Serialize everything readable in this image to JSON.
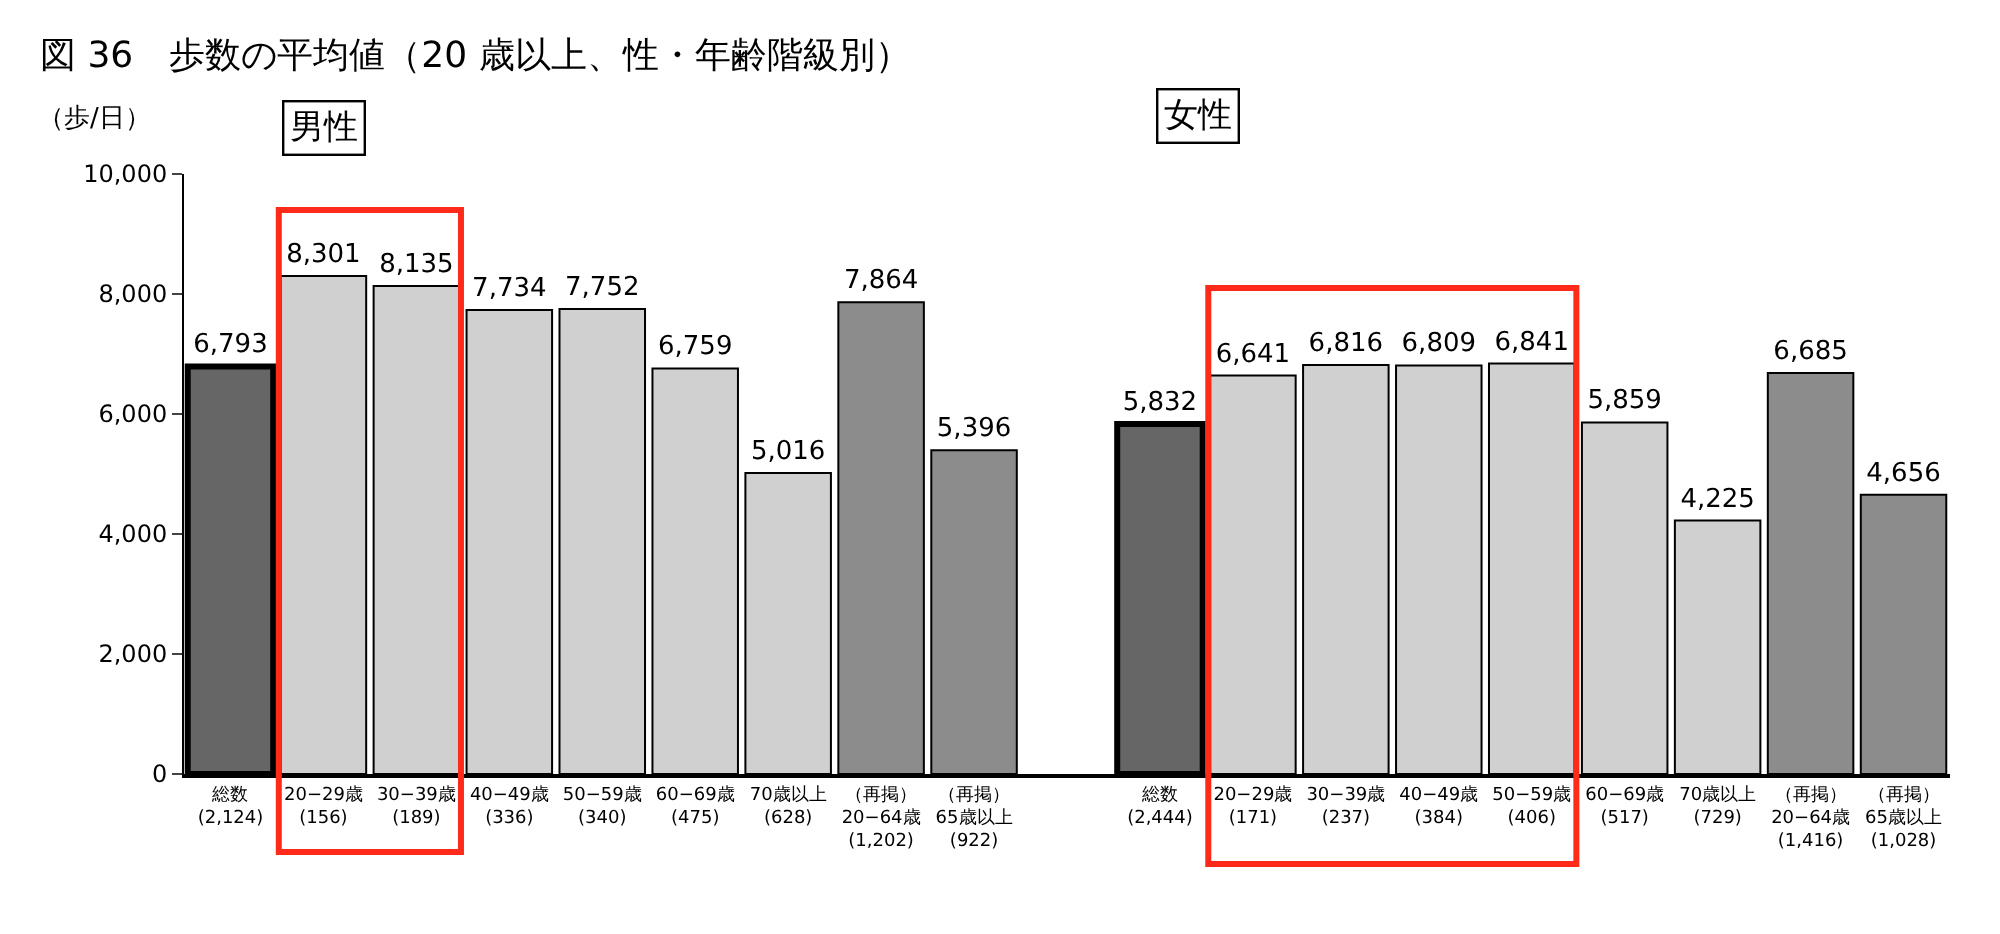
{
  "chart_data": {
    "type": "bar",
    "title": "図 36　歩数の平均値（20 歳以上、性・年齢階級別）",
    "ylabel": "（歩/日）",
    "categories": [
      "総数\n(2,124)",
      "20−29歳\n(156)",
      "30−39歳\n(189)",
      "40−49歳\n(336)",
      "50−59歳\n(340)",
      "60−69歳\n(475)",
      "70歳以上\n(628)",
      "（再掲）\n20−64歳\n(1,202)",
      "（再掲）\n65歳以上\n(922)",
      null,
      "総数\n(2,444)",
      "20−29歳\n(171)",
      "30−39歳\n(237)",
      "40−49歳\n(384)",
      "50−59歳\n(406)",
      "60−69歳\n(517)",
      "70歳以上\n(729)",
      "（再掲）\n20−64歳\n(1,416)",
      "（再掲）\n65歳以上\n(1,028)"
    ],
    "values": [
      6793,
      8301,
      8135,
      7734,
      7752,
      6759,
      5016,
      7864,
      5396,
      null,
      5832,
      6641,
      6816,
      6809,
      6841,
      5859,
      4225,
      6685,
      4656
    ],
    "colors": [
      "#666666",
      "#d0d0d0",
      "#d0d0d0",
      "#d0d0d0",
      "#d0d0d0",
      "#d0d0d0",
      "#d0d0d0",
      "#8c8c8c",
      "#8c8c8c",
      "#ffffff",
      "#666666",
      "#d0d0d0",
      "#d0d0d0",
      "#d0d0d0",
      "#d0d0d0",
      "#d0d0d0",
      "#d0d0d0",
      "#8c8c8c",
      "#8c8c8c"
    ],
    "value_labels": [
      "6,793",
      "8,301",
      "8,135",
      "7,734",
      "7,752",
      "6,759",
      "5,016",
      "7,864",
      "5,396",
      null,
      "5,832",
      "6,641",
      "6,816",
      "6,809",
      "6,841",
      "5,859",
      "4,225",
      "6,685",
      "4,656"
    ],
    "ylim": [
      0,
      10000
    ],
    "yticks": [
      0,
      {
        "value": 2000,
        "label": "2,000"
      },
      {
        "value": 4000,
        "label": "4,000"
      },
      {
        "value": 6000,
        "label": "6,000"
      },
      {
        "value": 8000,
        "label": "8,000"
      },
      {
        "value": 10000,
        "label": "10,000"
      }
    ],
    "grid": false,
    "legend": false,
    "annotations": [
      "男性",
      "女性"
    ]
  }
}
